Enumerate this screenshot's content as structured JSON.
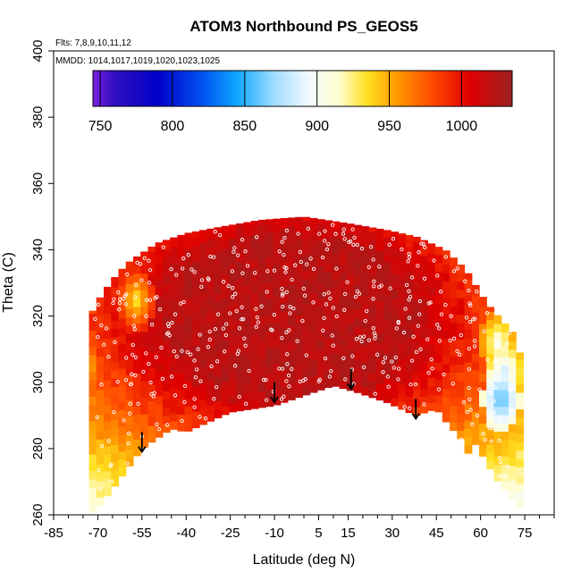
{
  "chart_data": {
    "type": "heatmap",
    "title": "ATOM3 Northbound PS_GEOS5",
    "annotations": [
      "Flts: 7,8,9,10,11,12",
      "MMDD: 1014,1017,1019,1020,1023,1025"
    ],
    "xlabel": "Latitude (deg N)",
    "ylabel": "Theta (C)",
    "xlim": [
      -85,
      85
    ],
    "ylim": [
      260,
      400
    ],
    "x_ticks": [
      -85,
      -70,
      -55,
      -40,
      -25,
      -10,
      5,
      15,
      30,
      45,
      60,
      75
    ],
    "x_tick_labels": [
      "-85",
      "-70",
      "-55",
      "-40",
      "-25",
      "-10",
      "5",
      "15",
      "30",
      "45",
      "60",
      "75"
    ],
    "y_ticks": [
      260,
      280,
      300,
      320,
      340,
      360,
      380,
      400
    ],
    "y_tick_labels": [
      "260",
      "280",
      "300",
      "320",
      "340",
      "360",
      "380",
      "400"
    ],
    "colorbar": {
      "range": [
        745,
        1035
      ],
      "ticks": [
        750,
        800,
        850,
        900,
        950,
        1000
      ],
      "tick_labels": [
        "750",
        "800",
        "850",
        "900",
        "950",
        "1000"
      ],
      "stops": [
        {
          "v": 745,
          "c": "#7a1ee0"
        },
        {
          "v": 760,
          "c": "#3010c0"
        },
        {
          "v": 790,
          "c": "#0000c8"
        },
        {
          "v": 820,
          "c": "#0050f0"
        },
        {
          "v": 845,
          "c": "#10a8ff"
        },
        {
          "v": 870,
          "c": "#a0dcff"
        },
        {
          "v": 895,
          "c": "#f4fbff"
        },
        {
          "v": 915,
          "c": "#fffdd0"
        },
        {
          "v": 935,
          "c": "#ffe020"
        },
        {
          "v": 955,
          "c": "#ff9a00"
        },
        {
          "v": 980,
          "c": "#ff4a00"
        },
        {
          "v": 1005,
          "c": "#e00000"
        },
        {
          "v": 1035,
          "c": "#9c2020"
        }
      ]
    },
    "region_bottom": [
      [
        -73,
        260
      ],
      [
        -70,
        262
      ],
      [
        -64,
        269
      ],
      [
        -55,
        280
      ],
      [
        -45,
        286
      ],
      [
        -40,
        285
      ],
      [
        -25,
        291
      ],
      [
        -10,
        293
      ],
      [
        0,
        296
      ],
      [
        10,
        299
      ],
      [
        18,
        297
      ],
      [
        28,
        294
      ],
      [
        38,
        290
      ],
      [
        45,
        292
      ],
      [
        50,
        286
      ],
      [
        53,
        284
      ],
      [
        55,
        276
      ],
      [
        57,
        283
      ],
      [
        62,
        276
      ],
      [
        65,
        271
      ],
      [
        70,
        266
      ],
      [
        73,
        262
      ]
    ],
    "region_top": [
      [
        -77,
        311
      ],
      [
        -74,
        318
      ],
      [
        -69,
        326
      ],
      [
        -65,
        331
      ],
      [
        -60,
        336
      ],
      [
        -55,
        339
      ],
      [
        -50,
        342
      ],
      [
        -40,
        345
      ],
      [
        -28,
        347
      ],
      [
        -15,
        349
      ],
      [
        0,
        350
      ],
      [
        15,
        348
      ],
      [
        28,
        346
      ],
      [
        38,
        344
      ],
      [
        48,
        340
      ],
      [
        55,
        334
      ],
      [
        62,
        324
      ],
      [
        68,
        318
      ],
      [
        72,
        314
      ],
      [
        75,
        302
      ],
      [
        77,
        292
      ]
    ],
    "value_field": {
      "core_value": 1022,
      "edge_value": 960,
      "cool_patches": [
        {
          "x": 67,
          "y": 295,
          "v": 850
        },
        {
          "x": 68,
          "y": 303,
          "v": 880
        },
        {
          "x": 66,
          "y": 312,
          "v": 900
        },
        {
          "x": -57,
          "y": 325,
          "v": 930
        },
        {
          "x": -74,
          "y": 305,
          "v": 935
        }
      ]
    },
    "arrows": [
      [
        -55,
        285
      ],
      [
        -10,
        300
      ],
      [
        16,
        304
      ],
      [
        38,
        295
      ]
    ]
  }
}
